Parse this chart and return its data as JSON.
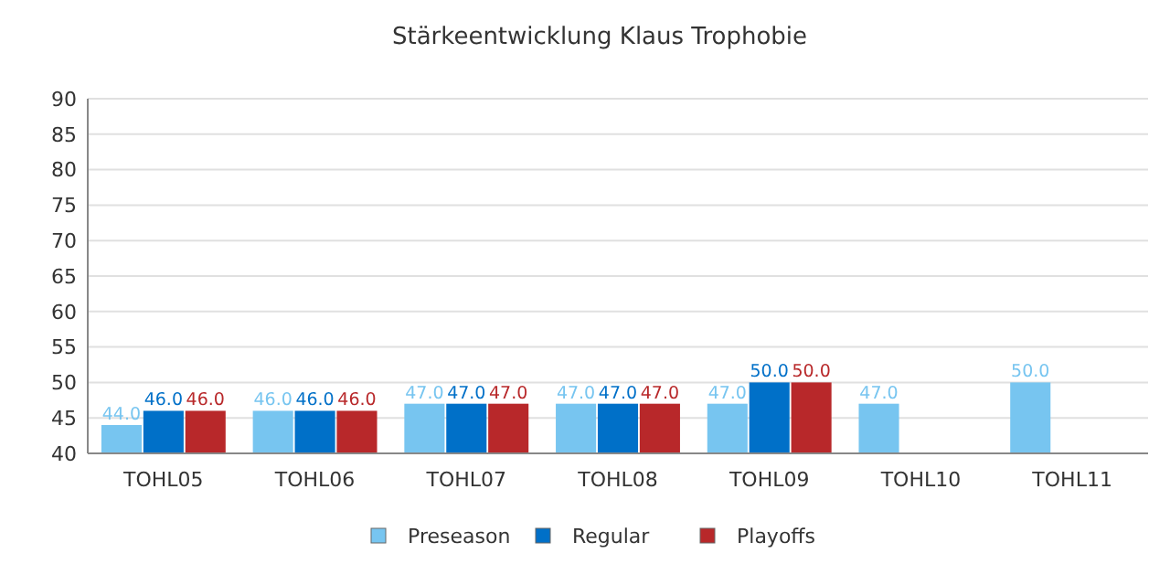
{
  "chart_data": {
    "type": "bar",
    "title": "Stärkeentwicklung Klaus Trophobie",
    "categories": [
      "TOHL05",
      "TOHL06",
      "TOHL07",
      "TOHL08",
      "TOHL09",
      "TOHL10",
      "TOHL11"
    ],
    "series": [
      {
        "name": "Preseason",
        "color": "#77c5f0",
        "values": [
          44,
          46,
          47,
          47,
          47,
          47,
          50
        ],
        "value_labels": [
          "44.0",
          "46.0",
          "47.0",
          "47.0",
          "47.0",
          "47.0",
          "50.0"
        ]
      },
      {
        "name": "Regular",
        "color": "#0070c8",
        "values": [
          46,
          46,
          47,
          47,
          50,
          null,
          null
        ],
        "value_labels": [
          "46.0",
          "46.0",
          "47.0",
          "47.0",
          "50.0",
          null,
          null
        ]
      },
      {
        "name": "Playoffs",
        "color": "#b8282a",
        "values": [
          46,
          46,
          47,
          47,
          50,
          null,
          null
        ],
        "value_labels": [
          "46.0",
          "46.0",
          "47.0",
          "47.0",
          "50.0",
          null,
          null
        ]
      }
    ],
    "ylim": [
      40,
      90
    ],
    "yticks": [
      40,
      45,
      50,
      55,
      60,
      65,
      70,
      75,
      80,
      85,
      90
    ],
    "grid": "y",
    "legend": "bottom"
  }
}
